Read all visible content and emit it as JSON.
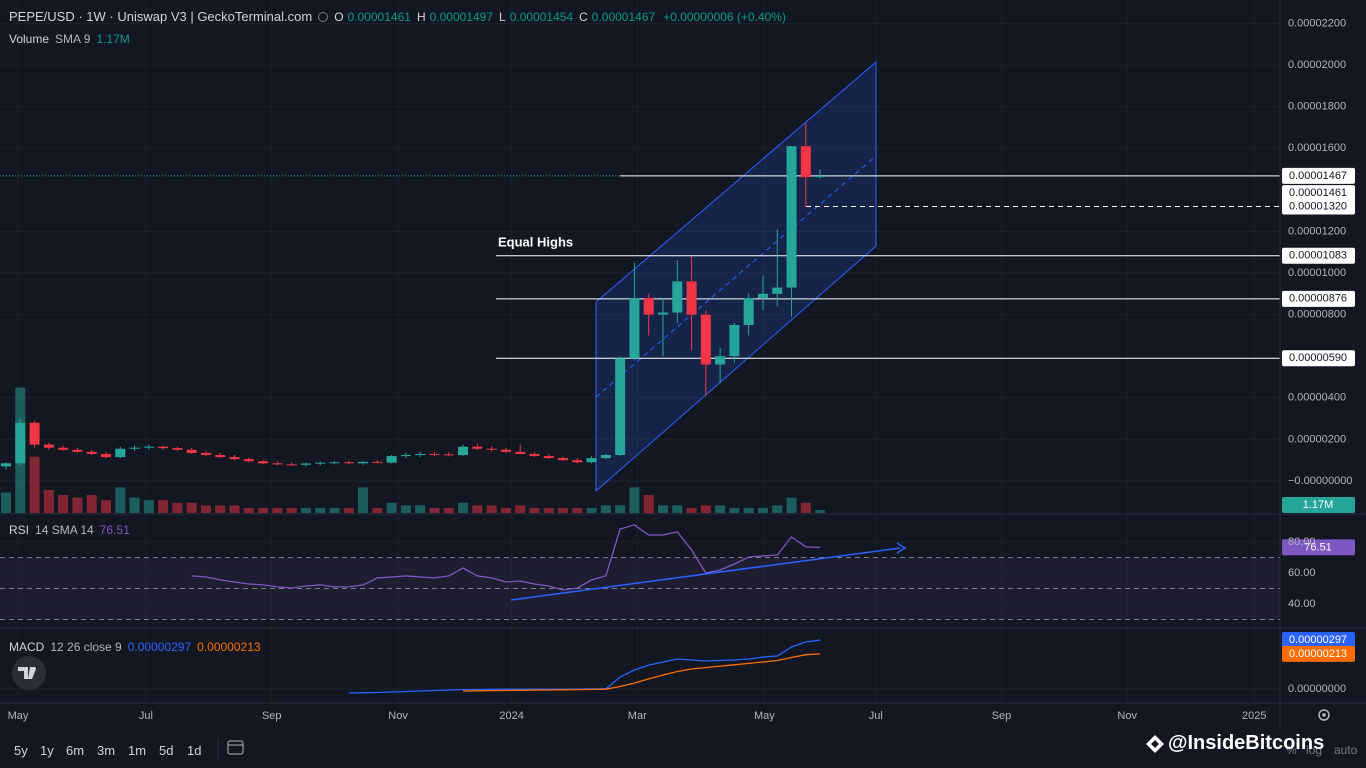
{
  "header": {
    "symbol": "PEPE/USD · 1W · Uniswap V3 | GeckoTerminal.com",
    "ohlc": [
      {
        "key": "O",
        "value": "0.00001461"
      },
      {
        "key": "H",
        "value": "0.00001497"
      },
      {
        "key": "L",
        "value": "0.00001454"
      },
      {
        "key": "C",
        "value": "0.00001467"
      }
    ],
    "change": "+0.00000006 (+0.40%)"
  },
  "chart_data": [
    {
      "type": "candlestick",
      "categories": [
        null,
        null,
        null,
        null,
        null,
        null,
        null,
        null,
        null,
        null,
        null,
        null,
        null,
        null,
        null,
        null,
        null,
        null,
        null,
        null,
        null,
        null,
        null,
        null,
        null,
        null,
        null,
        null,
        null,
        null,
        null,
        null,
        null,
        null,
        null,
        null,
        null,
        null,
        null,
        null,
        null,
        null,
        null,
        null,
        null,
        null,
        null,
        null,
        null,
        null,
        null,
        null,
        null,
        null,
        null,
        null,
        null,
        null
      ],
      "open": [
        7e-07,
        8.5e-07,
        2.8e-06,
        1.75e-06,
        1.6e-06,
        1.5e-06,
        1.4e-06,
        1.3e-06,
        1.15e-06,
        1.55e-06,
        1.6e-06,
        1.65e-06,
        1.58e-06,
        1.5e-06,
        1.35e-06,
        1.25e-06,
        1.15e-06,
        1.05e-06,
        9.5e-07,
        8.5e-07,
        8e-07,
        7.8e-07,
        8.4e-07,
        8.8e-07,
        9e-07,
        8.5e-07,
        9.2e-07,
        8.8e-07,
        1.2e-06,
        1.25e-06,
        1.3e-06,
        1.28e-06,
        1.25e-06,
        1.65e-06,
        1.55e-06,
        1.5e-06,
        1.4e-06,
        1.3e-06,
        1.2e-06,
        1.1e-06,
        1e-06,
        9e-07,
        1.1e-06,
        1.25e-06,
        5.9e-06,
        8.8e-06,
        8e-06,
        8.1e-06,
        9.6e-06,
        8e-06,
        5.6e-06,
        6e-06,
        7.5e-06,
        8.8e-06,
        9e-06,
        9.3e-06,
        1.61e-05,
        1.461e-05
      ],
      "high": [
        9e-07,
        3e-06,
        2.9e-06,
        1.85e-06,
        1.7e-06,
        1.6e-06,
        1.5e-06,
        1.4e-06,
        1.65e-06,
        1.7e-06,
        1.75e-06,
        1.7e-06,
        1.65e-06,
        1.58e-06,
        1.45e-06,
        1.35e-06,
        1.25e-06,
        1.12e-06,
        1e-06,
        9.5e-07,
        9e-07,
        8.8e-07,
        9.2e-07,
        9.5e-07,
        9.8e-07,
        9.5e-07,
        1e-06,
        1.25e-06,
        1.35e-06,
        1.4e-06,
        1.4e-06,
        1.38e-06,
        1.75e-06,
        1.8e-06,
        1.65e-06,
        1.6e-06,
        1.75e-06,
        1.4e-06,
        1.3e-06,
        1.18e-06,
        1.1e-06,
        1.2e-06,
        1.3e-06,
        6e-06,
        1.05e-05,
        9e-06,
        8.8e-06,
        1.06e-05,
        1.08e-05,
        8.2e-06,
        6.4e-06,
        7.6e-06,
        9e-06,
        9.9e-06,
        1.21e-05,
        1.61e-05,
        1.72e-05,
        1.497e-05
      ],
      "low": [
        5.5e-07,
        7.5e-07,
        1.6e-06,
        1.5e-06,
        1.45e-06,
        1.35e-06,
        1.25e-06,
        1.1e-06,
        1.1e-06,
        1.45e-06,
        1.5e-06,
        1.5e-06,
        1.45e-06,
        1.3e-06,
        1.2e-06,
        1.1e-06,
        1e-06,
        9e-07,
        8e-07,
        7.5e-07,
        7.2e-07,
        7e-07,
        7.5e-07,
        8e-07,
        8.2e-07,
        7.8e-07,
        8.5e-07,
        8.5e-07,
        1.1e-06,
        1.15e-06,
        1.2e-06,
        1.18e-06,
        1.2e-06,
        1.5e-06,
        1.4e-06,
        1.35e-06,
        1.3e-06,
        1.15e-06,
        1.05e-06,
        9.5e-07,
        8.5e-07,
        8.5e-07,
        1.05e-06,
        1.2e-06,
        5.8e-06,
        7e-06,
        6e-06,
        7.6e-06,
        6.3e-06,
        4.1e-06,
        4.7e-06,
        5.7e-06,
        7e-06,
        8.2e-06,
        8.4e-06,
        7.9e-06,
        1.317e-05,
        1.454e-05
      ],
      "close": [
        8.5e-07,
        2.8e-06,
        1.75e-06,
        1.6e-06,
        1.5e-06,
        1.4e-06,
        1.3e-06,
        1.15e-06,
        1.55e-06,
        1.6e-06,
        1.65e-06,
        1.58e-06,
        1.5e-06,
        1.35e-06,
        1.25e-06,
        1.15e-06,
        1.05e-06,
        9.5e-07,
        8.5e-07,
        8e-07,
        7.8e-07,
        8.4e-07,
        8.8e-07,
        9e-07,
        8.5e-07,
        9.2e-07,
        8.8e-07,
        1.2e-06,
        1.25e-06,
        1.3e-06,
        1.28e-06,
        1.25e-06,
        1.65e-06,
        1.55e-06,
        1.5e-06,
        1.4e-06,
        1.3e-06,
        1.2e-06,
        1.1e-06,
        1e-06,
        9e-07,
        1.1e-06,
        1.25e-06,
        5.9e-06,
        8.8e-06,
        8e-06,
        8.1e-06,
        9.6e-06,
        8e-06,
        5.6e-06,
        6e-06,
        7.5e-06,
        8.8e-06,
        9e-06,
        9.3e-06,
        1.61e-05,
        1.461e-05,
        1.467e-05
      ],
      "up_color": "#26a69a",
      "down_color": "#f23645",
      "ylim": [
        -1.54e-06,
        2.313e-05
      ],
      "yticks": [
        {
          "value": 0,
          "label": "−0.00000000"
        },
        {
          "value": 2e-06,
          "label": "0.00000200"
        },
        {
          "value": 4e-06,
          "label": "0.00000400"
        },
        {
          "value": 8e-06,
          "label": "0.00000800"
        },
        {
          "value": 1e-05,
          "label": "0.00001000"
        },
        {
          "value": 1.2e-05,
          "label": "0.00001200"
        },
        {
          "value": 1.6e-05,
          "label": "0.00001600"
        },
        {
          "value": 1.8e-05,
          "label": "0.00001800"
        },
        {
          "value": 2e-05,
          "label": "0.00002000"
        },
        {
          "value": 2.2e-05,
          "label": "0.00002200"
        }
      ],
      "xlim": [
        -0.42,
        89.2
      ],
      "xticks": [
        {
          "value": 0.84,
          "label": "May"
        },
        {
          "value": 9.8,
          "label": "Jul"
        },
        {
          "value": 18.6,
          "label": "Sep"
        },
        {
          "value": 27.45,
          "label": "Nov"
        },
        {
          "value": 35.4,
          "label": "2024"
        },
        {
          "value": 44.2,
          "label": "Mar"
        },
        {
          "value": 53.1,
          "label": "May"
        },
        {
          "value": 60.9,
          "label": "Jul"
        },
        {
          "value": 69.7,
          "label": "Sep"
        },
        {
          "value": 78.5,
          "label": "Nov"
        },
        {
          "value": 87.4,
          "label": "2025"
        }
      ],
      "grid": true,
      "volume": {
        "name": "Volume",
        "label": "SMA 9",
        "ylim": [
          0,
          50
        ],
        "value_label": "1.17M",
        "values": [
          8,
          49,
          22,
          9,
          7,
          6,
          7,
          5,
          10,
          6,
          5,
          5,
          4,
          4,
          3,
          3,
          3,
          2,
          2,
          2,
          2,
          2,
          2,
          2,
          2,
          10,
          2,
          4,
          3,
          3,
          2,
          2,
          4,
          3,
          3,
          2,
          3,
          2,
          2,
          2,
          2,
          2,
          3,
          3,
          10,
          7,
          3,
          3,
          2,
          3,
          3,
          2,
          2,
          2,
          3,
          6,
          4,
          1.17
        ]
      },
      "levels": [
        {
          "value": 1.083e-05,
          "label": "0.00001083"
        },
        {
          "value": 8.76e-06,
          "label": "0.00000876"
        },
        {
          "value": 5.9e-06,
          "label": "0.00000590"
        }
      ],
      "dashed_level": {
        "value": 1.32e-05,
        "label": "0.00001320"
      },
      "current": {
        "value": 1.467e-05,
        "label": "0.00001467"
      },
      "previous": {
        "value": 1.461e-05,
        "label": "0.00001461"
      },
      "annotation": "Equal Highs"
    },
    {
      "type": "line",
      "subtitle": "14 SMA 14",
      "series": [
        {
          "name": "RSI",
          "color": "#7e57c2",
          "values": [
            null,
            null,
            null,
            null,
            null,
            null,
            null,
            null,
            null,
            null,
            null,
            null,
            null,
            58.1,
            57.4,
            55.5,
            54.2,
            52.9,
            52.3,
            51.0,
            50.3,
            51.6,
            52.3,
            51.0,
            51.0,
            52.3,
            56.8,
            57.4,
            58.1,
            57.4,
            56.8,
            58.1,
            63.2,
            58.1,
            56.8,
            54.2,
            54.8,
            52.9,
            51.6,
            49.0,
            50.3,
            55.5,
            58.1,
            88.4,
            91.0,
            84.5,
            84.5,
            86.5,
            74.8,
            60.0,
            61.9,
            65.8,
            70.3,
            71.0,
            71.6,
            83.2,
            76.8,
            76.51
          ]
        }
      ],
      "ylim": [
        24.5,
        97.4
      ],
      "yticks": [
        {
          "value": 80,
          "label": "80.00"
        },
        {
          "value": 60,
          "label": "60.00"
        },
        {
          "value": 40,
          "label": "40.00"
        }
      ],
      "bands": [
        70,
        50,
        30
      ]
    },
    {
      "type": "line",
      "subtitle": "12 26 close 9",
      "series": [
        {
          "name": "MACD",
          "color": "#2962ff",
          "values": [
            null,
            null,
            null,
            null,
            null,
            null,
            null,
            null,
            null,
            null,
            null,
            null,
            null,
            null,
            null,
            null,
            null,
            null,
            null,
            null,
            null,
            null,
            null,
            null,
            -2.4e-07,
            -2.3e-07,
            -2.1e-07,
            -1.8e-07,
            -1.5e-07,
            -1.2e-07,
            -9e-08,
            -6e-08,
            -4e-08,
            -3e-08,
            -2e-08,
            -1e-08,
            -1e-08,
            -1e-08,
            -1e-08,
            -1e-08,
            0,
            1e-08,
            2e-08,
            7.3e-07,
            1.15e-06,
            1.45e-06,
            1.64e-06,
            1.82e-06,
            1.76e-06,
            1.7e-06,
            1.73e-06,
            1.76e-06,
            1.82e-06,
            1.94e-06,
            2e-06,
            2.55e-06,
            2.85e-06,
            2.97e-06
          ]
        },
        {
          "color": "#ff6d00",
          "values": [
            null,
            null,
            null,
            null,
            null,
            null,
            null,
            null,
            null,
            null,
            null,
            null,
            null,
            null,
            null,
            null,
            null,
            null,
            null,
            null,
            null,
            null,
            null,
            null,
            null,
            null,
            null,
            null,
            null,
            null,
            null,
            null,
            -1.2e-07,
            -1.1e-07,
            -1e-07,
            -9e-08,
            -8e-08,
            -7e-08,
            -6e-08,
            -5e-08,
            -4e-08,
            -3e-08,
            -1e-08,
            1.5e-07,
            3.6e-07,
            6.1e-07,
            8.5e-07,
            1.06e-06,
            1.21e-06,
            1.3e-06,
            1.39e-06,
            1.47e-06,
            1.55e-06,
            1.64e-06,
            1.73e-06,
            1.91e-06,
            2.08e-06,
            2.13e-06
          ]
        }
      ],
      "ylim": [
        -8.5e-07,
        3.7e-06
      ],
      "yticks": [
        {
          "value": 0,
          "label": "0.00000000"
        }
      ]
    }
  ],
  "toolbar": {
    "ranges": [
      "5y",
      "1y",
      "6m",
      "3m",
      "1m",
      "5d",
      "1d"
    ],
    "scale": [
      "%",
      "log",
      "auto"
    ]
  },
  "watermark": "@InsideBitcoins"
}
